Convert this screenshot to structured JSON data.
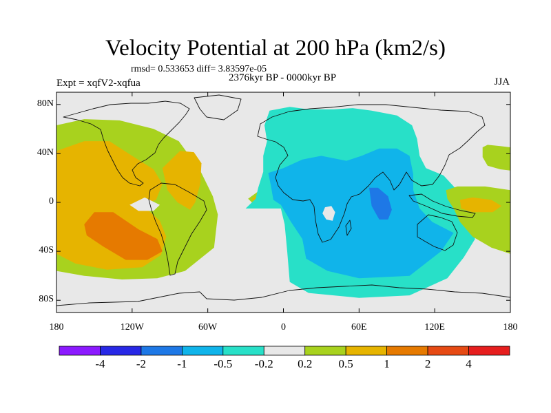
{
  "chart_data": {
    "type": "heatmap",
    "title": "Velocity Potential at 200 hPa (km2/s)",
    "stats_line": "rmsd= 0.533653 diff= 3.83597e-05",
    "period": "2376kyr BP - 0000kyr BP",
    "experiment": "Expt = xqfV2-xqfua",
    "season": "JJA",
    "x_axis": {
      "range": [
        -180,
        180
      ],
      "ticks": [
        {
          "value": -180,
          "label": "180"
        },
        {
          "value": -120,
          "label": "120W"
        },
        {
          "value": -60,
          "label": "60W"
        },
        {
          "value": 0,
          "label": "0"
        },
        {
          "value": 60,
          "label": "60E"
        },
        {
          "value": 120,
          "label": "120E"
        },
        {
          "value": 180,
          "label": "180"
        }
      ]
    },
    "y_axis": {
      "range": [
        -90,
        90
      ],
      "ticks": [
        {
          "value": 80,
          "label": "80N"
        },
        {
          "value": 40,
          "label": "40N"
        },
        {
          "value": 0,
          "label": "0"
        },
        {
          "value": -40,
          "label": "40S"
        },
        {
          "value": -80,
          "label": "80S"
        }
      ]
    },
    "colorbar": {
      "colors": [
        "#8c1aff",
        "#2828e6",
        "#1e78e6",
        "#10b4ea",
        "#28e0c8",
        "#e8e8e8",
        "#a8d21e",
        "#e6b400",
        "#e67a00",
        "#e64a14",
        "#e61e1e"
      ],
      "labels": [
        "-4",
        "-2",
        "-1",
        "-0.5",
        "-0.2",
        "0.2",
        "0.5",
        "1",
        "2",
        "4"
      ]
    },
    "regions": [
      {
        "level": "0.5",
        "color": "#a8d21e",
        "points": [
          [
            -180,
            63
          ],
          [
            -158,
            68
          ],
          [
            -130,
            67
          ],
          [
            -103,
            60
          ],
          [
            -83,
            50
          ],
          [
            -66,
            26
          ],
          [
            -56,
            5
          ],
          [
            -52,
            -10
          ],
          [
            -55,
            -37
          ],
          [
            -78,
            -56
          ],
          [
            -100,
            -62
          ],
          [
            -128,
            -63
          ],
          [
            -158,
            -60
          ],
          [
            -180,
            -56
          ]
        ]
      },
      {
        "level": "1",
        "color": "#e6b400",
        "points": [
          [
            -180,
            42
          ],
          [
            -158,
            50
          ],
          [
            -138,
            50
          ],
          [
            -120,
            38
          ],
          [
            -103,
            27
          ],
          [
            -96,
            15
          ],
          [
            -101,
            2
          ],
          [
            -112,
            -2
          ],
          [
            -98,
            -15
          ],
          [
            -93,
            -28
          ],
          [
            -97,
            -43
          ],
          [
            -112,
            -53
          ],
          [
            -140,
            -55
          ],
          [
            -165,
            -50
          ],
          [
            -180,
            -42
          ]
        ]
      },
      {
        "level": "1",
        "color": "#e6b400",
        "points": [
          [
            -96,
            28
          ],
          [
            -82,
            42
          ],
          [
            -71,
            41
          ],
          [
            -65,
            32
          ],
          [
            -66,
            15
          ],
          [
            -70,
            0
          ],
          [
            -74,
            -6
          ],
          [
            -84,
            0
          ],
          [
            -92,
            10
          ]
        ]
      },
      {
        "level": "0.2",
        "color": "#e8e8e8",
        "points": [
          [
            -122,
            -2
          ],
          [
            -110,
            4
          ],
          [
            -98,
            -2
          ],
          [
            -103,
            -7
          ],
          [
            -115,
            -7
          ]
        ]
      },
      {
        "level": "2",
        "color": "#e67a00",
        "points": [
          [
            -158,
            -18
          ],
          [
            -150,
            -8
          ],
          [
            -135,
            -8
          ],
          [
            -115,
            -22
          ],
          [
            -100,
            -30
          ],
          [
            -96,
            -40
          ],
          [
            -108,
            -47
          ],
          [
            -125,
            -47
          ],
          [
            -143,
            -36
          ],
          [
            -156,
            -27
          ]
        ]
      },
      {
        "level": "0.5",
        "color": "#a8d21e",
        "points": [
          [
            -28,
            3
          ],
          [
            -20,
            9
          ],
          [
            -10,
            9
          ],
          [
            -5,
            3
          ],
          [
            -10,
            -3
          ],
          [
            -22,
            -3
          ]
        ]
      },
      {
        "level": "1",
        "color": "#e6b400",
        "points": [
          [
            -25,
            3
          ],
          [
            -19,
            7
          ],
          [
            -12,
            7
          ],
          [
            -10,
            3
          ],
          [
            -14,
            -1
          ],
          [
            -22,
            -1
          ]
        ]
      },
      {
        "level": "-0.2",
        "color": "#28e0c8",
        "points": [
          [
            -11,
            75
          ],
          [
            5,
            78
          ],
          [
            20,
            76
          ],
          [
            40,
            76
          ],
          [
            55,
            77
          ],
          [
            70,
            75
          ],
          [
            90,
            71
          ],
          [
            102,
            63
          ],
          [
            106,
            52
          ],
          [
            108,
            38
          ],
          [
            113,
            28
          ],
          [
            127,
            22
          ],
          [
            136,
            12
          ],
          [
            141,
            0
          ],
          [
            148,
            -16
          ],
          [
            152,
            -30
          ],
          [
            143,
            -45
          ],
          [
            130,
            -62
          ],
          [
            100,
            -76
          ],
          [
            60,
            -78
          ],
          [
            20,
            -74
          ],
          [
            5,
            -65
          ],
          [
            3,
            -40
          ],
          [
            1,
            -18
          ],
          [
            -2,
            -5
          ],
          [
            -16,
            -5
          ],
          [
            -30,
            -5
          ],
          [
            -22,
            3
          ],
          [
            -20,
            12
          ],
          [
            -16,
            25
          ],
          [
            -16,
            38
          ],
          [
            -13,
            50
          ],
          [
            -15,
            63
          ]
        ]
      },
      {
        "level": "-0.5",
        "color": "#10b4ea",
        "points": [
          [
            -12,
            24
          ],
          [
            0,
            28
          ],
          [
            15,
            35
          ],
          [
            30,
            38
          ],
          [
            50,
            34
          ],
          [
            62,
            38
          ],
          [
            76,
            44
          ],
          [
            90,
            44
          ],
          [
            100,
            38
          ],
          [
            103,
            23
          ],
          [
            103,
            10
          ],
          [
            108,
            -5
          ],
          [
            118,
            -16
          ],
          [
            135,
            -25
          ],
          [
            125,
            -40
          ],
          [
            100,
            -60
          ],
          [
            60,
            -62
          ],
          [
            35,
            -56
          ],
          [
            18,
            -46
          ],
          [
            15,
            -30
          ],
          [
            6,
            -16
          ],
          [
            -2,
            -2
          ],
          [
            -8,
            2
          ],
          [
            -10,
            14
          ]
        ]
      },
      {
        "level": "-1",
        "color": "#1e78e6",
        "points": [
          [
            68,
            12
          ],
          [
            75,
            12
          ],
          [
            83,
            5
          ],
          [
            86,
            -6
          ],
          [
            83,
            -14
          ],
          [
            76,
            -14
          ],
          [
            70,
            -3
          ]
        ]
      },
      {
        "level": "0.2",
        "color": "#e8e8e8",
        "points": [
          [
            33,
            -4
          ],
          [
            38,
            -3
          ],
          [
            41,
            -8
          ],
          [
            39,
            -15
          ],
          [
            34,
            -14
          ],
          [
            31,
            -9
          ]
        ]
      },
      {
        "level": "0.5",
        "color": "#a8d21e",
        "points": [
          [
            158,
            45
          ],
          [
            162,
            47
          ],
          [
            172,
            46
          ],
          [
            180,
            45
          ],
          [
            180,
            26
          ],
          [
            172,
            27
          ],
          [
            162,
            30
          ],
          [
            158,
            37
          ]
        ]
      },
      {
        "level": "0.5",
        "color": "#a8d21e",
        "points": [
          [
            129,
            10
          ],
          [
            138,
            13
          ],
          [
            160,
            13
          ],
          [
            180,
            10
          ],
          [
            180,
            -42
          ],
          [
            165,
            -37
          ],
          [
            150,
            -28
          ],
          [
            140,
            -16
          ],
          [
            135,
            -5
          ],
          [
            130,
            3
          ]
        ]
      },
      {
        "level": "1",
        "color": "#e6b400",
        "points": [
          [
            140,
            2
          ],
          [
            150,
            4
          ],
          [
            165,
            2
          ],
          [
            173,
            -3
          ],
          [
            166,
            -8
          ],
          [
            150,
            -8
          ],
          [
            141,
            -5
          ]
        ]
      }
    ]
  }
}
